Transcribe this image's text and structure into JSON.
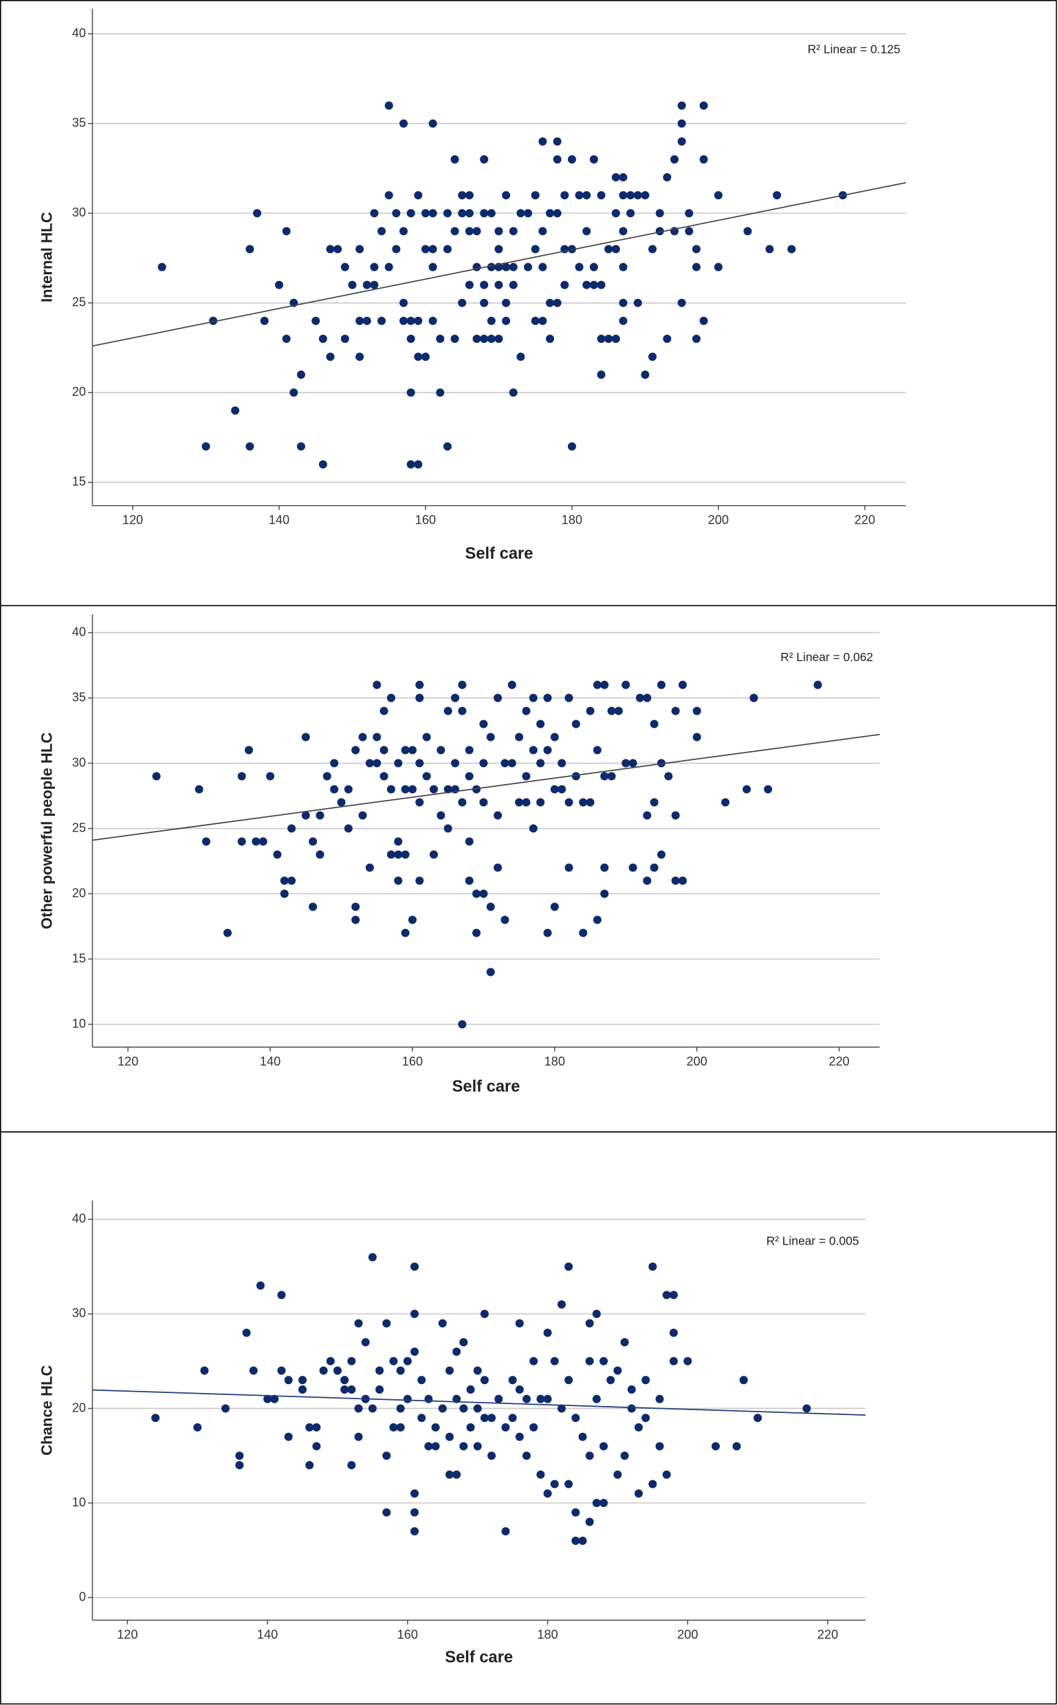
{
  "chart_data": [
    {
      "type": "scatter",
      "x_label": "Self care",
      "y_label": "Internal HLC",
      "annotation": "R² Linear = 0.125",
      "color": "#0d2a6b",
      "xlim": [
        114.5,
        225.6
      ],
      "xticks": [
        120,
        140,
        160,
        180,
        200,
        220
      ],
      "ylim": [
        13.7,
        41.4
      ],
      "yticks": [
        15,
        20,
        25,
        30,
        35,
        40
      ],
      "grid": true,
      "trend_line": {
        "color": "#444444",
        "x": [
          114.5,
          225.6
        ],
        "values": [
          22.6,
          31.7
        ]
      },
      "x": [
        124,
        130,
        131,
        134,
        136,
        136,
        137,
        138,
        140,
        141,
        141,
        142,
        142,
        143,
        143,
        145,
        146,
        146,
        147,
        147,
        148,
        149,
        149,
        150,
        151,
        151,
        151,
        152,
        152,
        153,
        153,
        153,
        154,
        154,
        155,
        155,
        155,
        156,
        156,
        157,
        157,
        157,
        157,
        158,
        158,
        158,
        158,
        158,
        159,
        159,
        159,
        159,
        160,
        160,
        160,
        161,
        161,
        161,
        161,
        161,
        162,
        162,
        163,
        163,
        163,
        164,
        164,
        164,
        165,
        165,
        165,
        166,
        166,
        166,
        166,
        167,
        167,
        167,
        168,
        168,
        168,
        168,
        168,
        169,
        169,
        169,
        169,
        170,
        170,
        170,
        170,
        170,
        171,
        171,
        171,
        171,
        172,
        172,
        172,
        172,
        173,
        173,
        174,
        174,
        175,
        175,
        175,
        176,
        176,
        176,
        176,
        177,
        177,
        177,
        178,
        178,
        178,
        178,
        179,
        179,
        179,
        180,
        180,
        180,
        181,
        181,
        182,
        182,
        182,
        183,
        183,
        183,
        184,
        184,
        184,
        184,
        185,
        185,
        186,
        186,
        186,
        186,
        187,
        187,
        187,
        187,
        187,
        187,
        188,
        188,
        189,
        189,
        190,
        190,
        191,
        191,
        192,
        192,
        193,
        193,
        194,
        194,
        195,
        195,
        195,
        195,
        196,
        196,
        197,
        197,
        197,
        198,
        198,
        198,
        200,
        200,
        204,
        207,
        208,
        210,
        217
      ],
      "values": [
        27,
        17,
        24,
        19,
        28,
        17,
        30,
        24,
        26,
        23,
        29,
        25,
        20,
        21,
        17,
        24,
        23,
        16,
        28,
        22,
        28,
        23,
        27,
        26,
        28,
        24,
        22,
        26,
        24,
        30,
        26,
        27,
        24,
        29,
        36,
        27,
        31,
        30,
        28,
        35,
        24,
        25,
        29,
        24,
        20,
        16,
        23,
        30,
        24,
        16,
        22,
        31,
        22,
        28,
        30,
        35,
        30,
        28,
        24,
        27,
        20,
        23,
        30,
        17,
        28,
        29,
        33,
        23,
        31,
        30,
        25,
        31,
        29,
        26,
        30,
        29,
        23,
        27,
        33,
        30,
        25,
        23,
        26,
        30,
        27,
        24,
        23,
        28,
        27,
        26,
        29,
        23,
        31,
        27,
        25,
        24,
        29,
        27,
        20,
        26,
        22,
        30,
        30,
        27,
        28,
        31,
        24,
        34,
        29,
        27,
        24,
        30,
        25,
        23,
        33,
        34,
        30,
        25,
        31,
        28,
        26,
        33,
        28,
        17,
        31,
        27,
        31,
        29,
        26,
        33,
        27,
        26,
        31,
        26,
        23,
        21,
        28,
        23,
        32,
        30,
        28,
        23,
        32,
        31,
        29,
        27,
        25,
        24,
        31,
        30,
        31,
        25,
        31,
        21,
        28,
        22,
        30,
        29,
        32,
        23,
        33,
        29,
        36,
        35,
        34,
        25,
        30,
        29,
        28,
        27,
        23,
        36,
        33,
        24,
        31,
        27,
        29,
        28,
        31,
        28,
        31
      ]
    },
    {
      "type": "scatter",
      "x_label": "Self care",
      "y_label": "Other powerful people HLC",
      "annotation": "R² Linear = 0.062",
      "color": "#0d2a6b",
      "xlim": [
        115,
        225.7
      ],
      "xticks": [
        120,
        140,
        160,
        180,
        200,
        220
      ],
      "ylim": [
        8.25,
        41.4
      ],
      "yticks": [
        10,
        15,
        20,
        25,
        30,
        35,
        40
      ],
      "grid": true,
      "trend_line": {
        "color": "#444444",
        "x": [
          115,
          225.7
        ],
        "values": [
          24.1,
          32.2
        ]
      },
      "x": [
        124,
        130,
        131,
        134,
        136,
        136,
        137,
        138,
        139,
        140,
        141,
        142,
        142,
        143,
        143,
        145,
        145,
        146,
        146,
        147,
        147,
        148,
        149,
        149,
        150,
        151,
        151,
        152,
        152,
        152,
        153,
        153,
        154,
        154,
        155,
        155,
        155,
        156,
        156,
        156,
        157,
        157,
        157,
        158,
        158,
        158,
        158,
        159,
        159,
        159,
        159,
        160,
        160,
        160,
        161,
        161,
        161,
        161,
        161,
        162,
        162,
        163,
        163,
        164,
        164,
        165,
        165,
        165,
        166,
        166,
        166,
        167,
        167,
        167,
        167,
        168,
        168,
        168,
        168,
        169,
        169,
        169,
        170,
        170,
        170,
        170,
        171,
        171,
        171,
        172,
        172,
        172,
        173,
        173,
        174,
        174,
        175,
        175,
        176,
        176,
        176,
        177,
        177,
        177,
        178,
        178,
        178,
        179,
        179,
        179,
        180,
        180,
        180,
        181,
        181,
        182,
        182,
        182,
        183,
        183,
        184,
        184,
        185,
        185,
        186,
        186,
        186,
        187,
        187,
        187,
        187,
        188,
        188,
        189,
        190,
        190,
        191,
        191,
        192,
        193,
        193,
        193,
        194,
        194,
        194,
        195,
        195,
        195,
        196,
        197,
        197,
        197,
        198,
        198,
        200,
        200,
        204,
        207,
        208,
        210,
        217
      ],
      "values": [
        29,
        28,
        24,
        17,
        29,
        24,
        31,
        24,
        24,
        29,
        23,
        21,
        20,
        25,
        21,
        32,
        26,
        24,
        19,
        23,
        26,
        29,
        30,
        28,
        27,
        25,
        28,
        19,
        18,
        31,
        26,
        32,
        30,
        22,
        36,
        32,
        30,
        34,
        29,
        31,
        35,
        28,
        23,
        30,
        24,
        21,
        23,
        31,
        28,
        17,
        23,
        31,
        18,
        28,
        36,
        35,
        30,
        27,
        21,
        29,
        32,
        28,
        23,
        26,
        31,
        28,
        34,
        25,
        30,
        28,
        35,
        34,
        27,
        36,
        10,
        31,
        24,
        21,
        29,
        28,
        20,
        17,
        33,
        20,
        27,
        30,
        32,
        19,
        14,
        35,
        26,
        22,
        30,
        18,
        36,
        30,
        27,
        32,
        34,
        27,
        29,
        35,
        31,
        25,
        33,
        30,
        27,
        35,
        31,
        17,
        32,
        28,
        19,
        30,
        28,
        35,
        27,
        22,
        33,
        29,
        27,
        17,
        34,
        27,
        36,
        31,
        18,
        36,
        29,
        22,
        20,
        34,
        29,
        34,
        36,
        30,
        30,
        22,
        35,
        35,
        26,
        21,
        33,
        27,
        22,
        36,
        30,
        23,
        29,
        34,
        26,
        21,
        21,
        36,
        34,
        32,
        27,
        28,
        35,
        28,
        36
      ]
    },
    {
      "type": "scatter",
      "x_label": "Self care",
      "y_label": "Chance HLC",
      "annotation": "R² Linear = 0.005",
      "color": "#0d2a6b",
      "xlim": [
        115,
        225.4
      ],
      "xticks": [
        120,
        140,
        160,
        180,
        200,
        220
      ],
      "ylim": [
        -2.4,
        42
      ],
      "yticks": [
        0,
        10,
        20,
        30,
        40
      ],
      "grid": true,
      "trend_line": {
        "color": "#1f3b7a",
        "x": [
          115,
          225.4
        ],
        "values": [
          21.95,
          19.3
        ]
      },
      "x": [
        124,
        130,
        131,
        134,
        136,
        136,
        137,
        138,
        139,
        140,
        141,
        142,
        142,
        143,
        143,
        145,
        145,
        146,
        146,
        147,
        147,
        148,
        149,
        150,
        151,
        151,
        152,
        152,
        152,
        153,
        153,
        153,
        154,
        154,
        155,
        155,
        156,
        156,
        157,
        157,
        157,
        158,
        158,
        159,
        159,
        159,
        160,
        160,
        161,
        161,
        161,
        161,
        161,
        161,
        162,
        162,
        163,
        163,
        164,
        164,
        165,
        165,
        166,
        166,
        166,
        167,
        167,
        167,
        168,
        168,
        168,
        169,
        169,
        170,
        170,
        170,
        171,
        171,
        171,
        172,
        172,
        173,
        174,
        174,
        175,
        175,
        176,
        176,
        176,
        177,
        177,
        178,
        178,
        179,
        179,
        180,
        180,
        180,
        181,
        181,
        182,
        182,
        183,
        183,
        183,
        184,
        184,
        184,
        185,
        185,
        186,
        186,
        186,
        186,
        187,
        187,
        187,
        188,
        188,
        188,
        189,
        190,
        190,
        191,
        191,
        192,
        192,
        193,
        193,
        194,
        194,
        195,
        195,
        196,
        196,
        197,
        197,
        198,
        198,
        198,
        200,
        204,
        207,
        208,
        210,
        217
      ],
      "values": [
        19,
        18,
        24,
        20,
        15,
        14,
        28,
        24,
        33,
        21,
        21,
        32,
        24,
        17,
        23,
        23,
        22,
        14,
        18,
        16,
        18,
        24,
        25,
        24,
        22,
        23,
        25,
        22,
        14,
        20,
        29,
        17,
        27,
        21,
        36,
        20,
        24,
        22,
        29,
        15,
        9,
        18,
        25,
        24,
        18,
        20,
        25,
        21,
        35,
        30,
        26,
        11,
        9,
        7,
        19,
        23,
        16,
        21,
        18,
        16,
        29,
        20,
        17,
        24,
        13,
        26,
        21,
        13,
        27,
        16,
        20,
        22,
        18,
        16,
        24,
        20,
        30,
        19,
        23,
        19,
        15,
        21,
        18,
        7,
        23,
        19,
        29,
        22,
        17,
        21,
        15,
        25,
        18,
        21,
        13,
        28,
        21,
        11,
        25,
        12,
        31,
        20,
        35,
        23,
        12,
        19,
        6,
        9,
        17,
        6,
        25,
        29,
        15,
        8,
        30,
        21,
        10,
        25,
        16,
        10,
        23,
        13,
        24,
        27,
        15,
        22,
        20,
        11,
        18,
        23,
        19,
        35,
        12,
        21,
        16,
        32,
        13,
        32,
        28,
        25,
        25,
        16,
        16,
        23,
        19,
        20
      ]
    }
  ]
}
